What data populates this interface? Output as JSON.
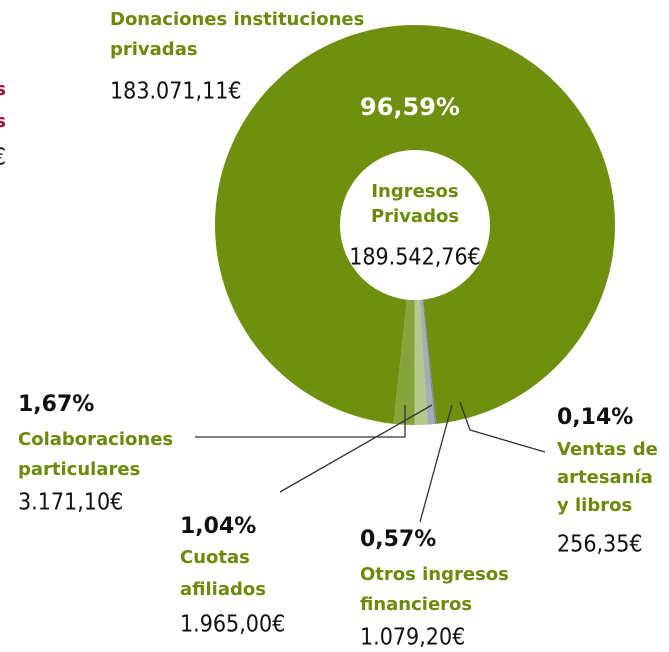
{
  "chart_data": {
    "type": "pie",
    "donut": true,
    "categories": [
      [
        "Donaciones instituciones",
        "privadas"
      ],
      [
        "Colaboraciones",
        "particulares"
      ],
      [
        "Cuotas",
        "afiliados"
      ],
      [
        "Otros ingresos",
        "financieros"
      ],
      [
        "Ventas de",
        "artesanía",
        "y libros"
      ]
    ],
    "values": [
      96.59,
      1.67,
      1.04,
      0.57,
      0.14
    ],
    "value_labels": [
      "96,59%",
      "1,67%",
      "1,04%",
      "0,57%",
      "0,14%"
    ],
    "amount_labels": [
      "183.071,11€",
      "3.171,10€",
      "1.965,00€",
      "1.079,20€",
      "256,35€"
    ],
    "colors": [
      "#6f8f0e",
      "#86a43c",
      "#b6c98c",
      "#a7adb4",
      "#808c9b"
    ],
    "center_label": [
      "Ingresos",
      "Privados"
    ],
    "center_total_label": "189.542,76€"
  },
  "clipped_text": [
    "s",
    "s",
    "€"
  ]
}
